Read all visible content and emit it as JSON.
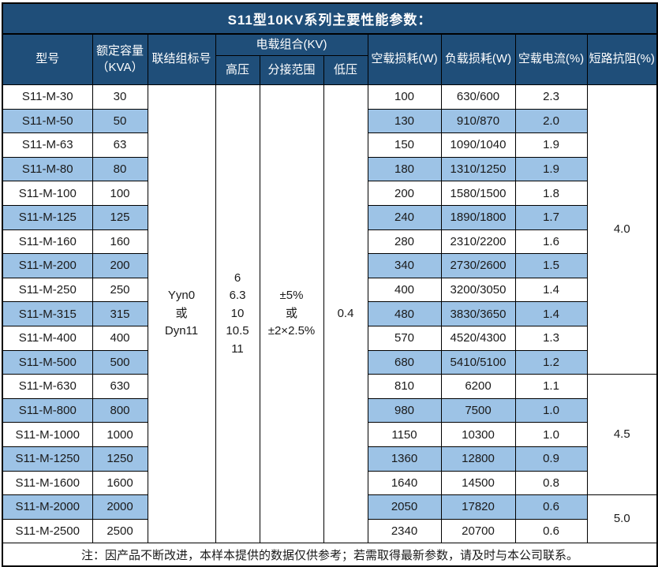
{
  "title": "S11型10KV系列主要性能参数：",
  "columns": {
    "model": "型号",
    "capacity": "额定容量\n（KVA）",
    "vector_group": "联结组标号",
    "load_combo": "电载组合(KV)",
    "hv": "高压",
    "tap_range": "分接范围",
    "lv": "低压",
    "no_load_loss": "空载损耗(W)",
    "load_loss": "负载损耗(W)",
    "no_load_current": "空载电流(%)",
    "impedance": "短路抗阻(%)"
  },
  "merged": {
    "vector_group": "Yyn0\n或\nDyn11",
    "hv": "6\n6.3\n10\n10.5\n11",
    "tap_range": "±5%\n或\n±2×2.5%",
    "lv": "0.4"
  },
  "rows": [
    {
      "model": "S11-M-30",
      "capacity": "30",
      "no_load_loss": "100",
      "load_loss": "630/600",
      "no_load_current": "2.3"
    },
    {
      "model": "S11-M-50",
      "capacity": "50",
      "no_load_loss": "130",
      "load_loss": "910/870",
      "no_load_current": "2.0"
    },
    {
      "model": "S11-M-63",
      "capacity": "63",
      "no_load_loss": "150",
      "load_loss": "1090/1040",
      "no_load_current": "1.9"
    },
    {
      "model": "S11-M-80",
      "capacity": "80",
      "no_load_loss": "180",
      "load_loss": "1310/1250",
      "no_load_current": "1.9"
    },
    {
      "model": "S11-M-100",
      "capacity": "100",
      "no_load_loss": "200",
      "load_loss": "1580/1500",
      "no_load_current": "1.8"
    },
    {
      "model": "S11-M-125",
      "capacity": "125",
      "no_load_loss": "240",
      "load_loss": "1890/1800",
      "no_load_current": "1.7"
    },
    {
      "model": "S11-M-160",
      "capacity": "160",
      "no_load_loss": "280",
      "load_loss": "2310/2200",
      "no_load_current": "1.6"
    },
    {
      "model": "S11-M-200",
      "capacity": "200",
      "no_load_loss": "340",
      "load_loss": "2730/2600",
      "no_load_current": "1.5"
    },
    {
      "model": "S11-M-250",
      "capacity": "250",
      "no_load_loss": "400",
      "load_loss": "3200/3050",
      "no_load_current": "1.4"
    },
    {
      "model": "S11-M-315",
      "capacity": "315",
      "no_load_loss": "480",
      "load_loss": "3830/3650",
      "no_load_current": "1.4"
    },
    {
      "model": "S11-M-400",
      "capacity": "400",
      "no_load_loss": "570",
      "load_loss": "4520/4300",
      "no_load_current": "1.3"
    },
    {
      "model": "S11-M-500",
      "capacity": "500",
      "no_load_loss": "680",
      "load_loss": "5410/5100",
      "no_load_current": "1.2"
    },
    {
      "model": "S11-M-630",
      "capacity": "630",
      "no_load_loss": "810",
      "load_loss": "6200",
      "no_load_current": "1.1"
    },
    {
      "model": "S11-M-800",
      "capacity": "800",
      "no_load_loss": "980",
      "load_loss": "7500",
      "no_load_current": "1.0"
    },
    {
      "model": "S11-M-1000",
      "capacity": "1000",
      "no_load_loss": "1150",
      "load_loss": "10300",
      "no_load_current": "1.0"
    },
    {
      "model": "S11-M-1250",
      "capacity": "1250",
      "no_load_loss": "1360",
      "load_loss": "12800",
      "no_load_current": "0.9"
    },
    {
      "model": "S11-M-1600",
      "capacity": "1600",
      "no_load_loss": "1640",
      "load_loss": "14500",
      "no_load_current": "0.8"
    },
    {
      "model": "S11-M-2000",
      "capacity": "2000",
      "no_load_loss": "2050",
      "load_loss": "17820",
      "no_load_current": "0.6"
    },
    {
      "model": "S11-M-2500",
      "capacity": "2500",
      "no_load_loss": "2340",
      "load_loss": "20700",
      "no_load_current": "0.6"
    }
  ],
  "impedance_groups": [
    {
      "value": "4.0",
      "span": 12,
      "start": 0
    },
    {
      "value": "4.5",
      "span": 5,
      "start": 12
    },
    {
      "value": "5.0",
      "span": 2,
      "start": 17
    }
  ],
  "note": "注：因产品不断改进，本样本提供的数据仅供参考；若需取得最新参数，请及时与本公司联系。",
  "colors": {
    "header_bg": "#1F4E79",
    "stripe_bg": "#9DC3E6",
    "border": "#000000",
    "header_text": "#FFFFFF"
  }
}
